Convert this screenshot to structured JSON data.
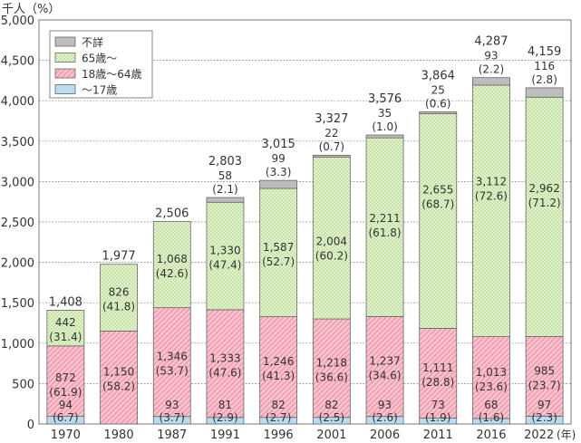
{
  "chart_data": {
    "type": "bar",
    "stacked": true,
    "unit_label": "千人（%）",
    "x_unit": "(年)",
    "categories": [
      "1970",
      "1980",
      "1987",
      "1991",
      "1996",
      "2001",
      "2006",
      "2011",
      "2016",
      "2022"
    ],
    "ylim": [
      0,
      5000
    ],
    "yticks": [
      0,
      500,
      1000,
      1500,
      2000,
      2500,
      3000,
      3500,
      4000,
      4500,
      5000
    ],
    "ytick_labels": [
      "0",
      "500",
      "1,000",
      "1,500",
      "2,000",
      "2,500",
      "3,000",
      "3,500",
      "4,000",
      "4,500",
      "5,000"
    ],
    "grid": true,
    "legend_position": "top-left",
    "totals": [
      1408,
      1977,
      2506,
      2803,
      3015,
      3327,
      3576,
      3864,
      4287,
      4159
    ],
    "total_labels": [
      "1,408",
      "1,977",
      "2,506",
      "2,803",
      "3,015",
      "3,327",
      "3,576",
      "3,864",
      "4,287",
      "4,159"
    ],
    "series": [
      {
        "name": "～17歳",
        "color": "#b9dcf2",
        "values": [
          94,
          null,
          93,
          81,
          82,
          82,
          93,
          73,
          68,
          97
        ],
        "value_labels": [
          "94",
          null,
          "93",
          "81",
          "82",
          "82",
          "93",
          "73",
          "68",
          "97"
        ],
        "percent_labels": [
          "(6.7)",
          null,
          "(3.7)",
          "(2.9)",
          "(2.7)",
          "(2.5)",
          "(2.6)",
          "(1.9)",
          "(1.6)",
          "(2.3)"
        ]
      },
      {
        "name": "18歳～64歳",
        "color": "#f6b3c0",
        "values": [
          872,
          1150,
          1346,
          1333,
          1246,
          1218,
          1237,
          1111,
          1013,
          985
        ],
        "value_labels": [
          "872",
          "1,150",
          "1,346",
          "1,333",
          "1,246",
          "1,218",
          "1,237",
          "1,111",
          "1,013",
          "985"
        ],
        "percent_labels": [
          "(61.9)",
          "(58.2)",
          "(53.7)",
          "(47.6)",
          "(41.3)",
          "(36.6)",
          "(34.6)",
          "(28.8)",
          "(23.6)",
          "(23.7)"
        ]
      },
      {
        "name": "65歳～",
        "color": "#cfe8b0",
        "values": [
          442,
          826,
          1068,
          1330,
          1587,
          2004,
          2211,
          2655,
          3112,
          2962
        ],
        "value_labels": [
          "442",
          "826",
          "1,068",
          "1,330",
          "1,587",
          "2,004",
          "2,211",
          "2,655",
          "3,112",
          "2,962"
        ],
        "percent_labels": [
          "(31.4)",
          "(41.8)",
          "(42.6)",
          "(47.4)",
          "(52.7)",
          "(60.2)",
          "(61.8)",
          "(68.7)",
          "(72.6)",
          "(71.2)"
        ]
      },
      {
        "name": "不詳",
        "color": "#bdbdbd",
        "values": [
          null,
          null,
          null,
          58,
          99,
          22,
          35,
          25,
          93,
          116
        ],
        "value_labels": [
          null,
          null,
          null,
          "58",
          "99",
          "22",
          "35",
          "25",
          "93",
          "116"
        ],
        "percent_labels": [
          null,
          null,
          null,
          "(2.1)",
          "(3.3)",
          "(0.7)",
          "(1.0)",
          "(0.6)",
          "(2.2)",
          "(2.8)"
        ]
      }
    ]
  }
}
